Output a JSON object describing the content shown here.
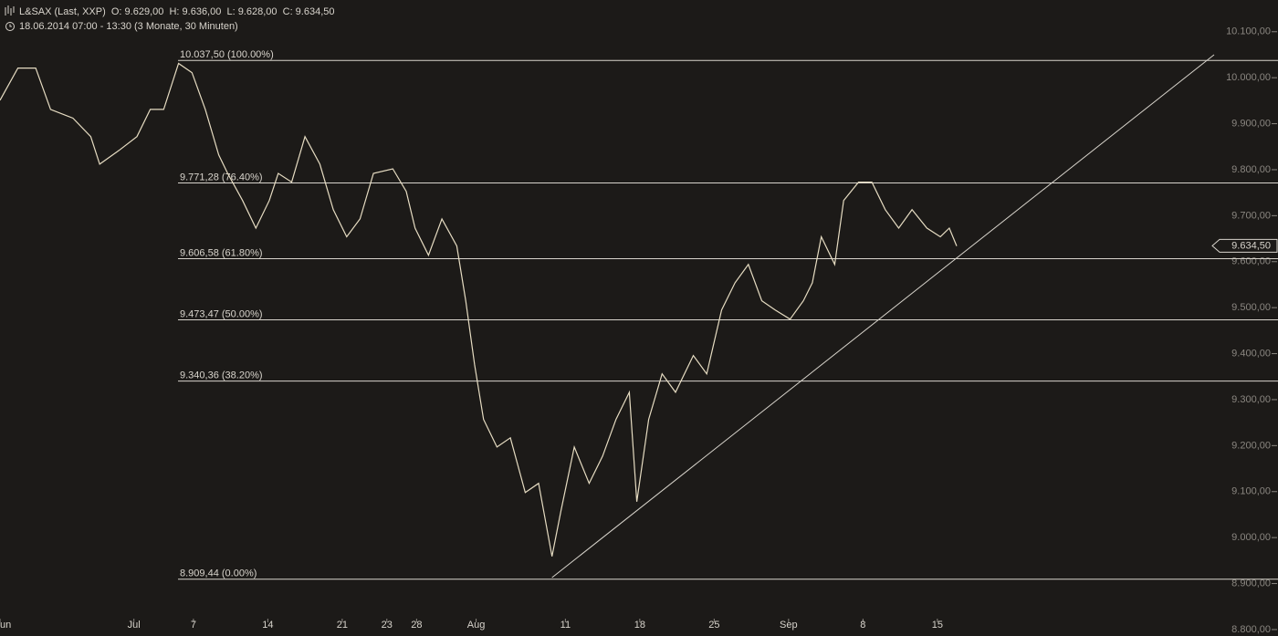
{
  "chart_data": {
    "type": "line",
    "title": "L&SAX (Last, XXP)  O: 9.629,00  H: 9.636,00  L: 9.628,00  C: 9.634,50",
    "subtitle": "18.06.2014 07:00 - 13:30 (3 Monate, 30 Minuten)",
    "x": [
      -3.0,
      -1.8,
      -0.6,
      0.4,
      1.9,
      3.1,
      3.7,
      5.0,
      6.2,
      7.1,
      8.0,
      9.0,
      9.9,
      10.8,
      11.7,
      12.3,
      13.3,
      14.2,
      15.1,
      15.7,
      16.6,
      17.5,
      18.5,
      19.4,
      20.3,
      21.2,
      22.1,
      23.4,
      24.3,
      24.9,
      25.8,
      26.7,
      27.7,
      28.3,
      28.9,
      29.5,
      30.4,
      31.3,
      32.3,
      33.2,
      34.1,
      34.7,
      35.6,
      36.6,
      37.5,
      38.4,
      39.3,
      39.8,
      40.6,
      41.5,
      42.4,
      43.6,
      44.5,
      45.5,
      46.4,
      47.3,
      48.2,
      49.1,
      50.1,
      51.0,
      51.6,
      52.2,
      53.1,
      53.7,
      54.7,
      55.6,
      56.5,
      57.4,
      58.3,
      59.3,
      60.2,
      60.8,
      61.3
    ],
    "series": [
      {
        "name": "L&SAX",
        "color": "#e6dcc2",
        "values": [
          9951,
          10021,
          10021,
          9931,
          9912,
          9872,
          9812,
          9842,
          9872,
          9931,
          9931,
          10031,
          10011,
          9931,
          9832,
          9792,
          9733,
          9673,
          9733,
          9792,
          9773,
          9872,
          9812,
          9713,
          9654,
          9693,
          9792,
          9802,
          9753,
          9673,
          9614,
          9693,
          9634,
          9515,
          9376,
          9257,
          9197,
          9217,
          9098,
          9118,
          8959,
          9058,
          9197,
          9118,
          9177,
          9257,
          9316,
          9078,
          9257,
          9356,
          9316,
          9396,
          9356,
          9495,
          9554,
          9594,
          9515,
          9495,
          9475,
          9515,
          9554,
          9654,
          9594,
          9733,
          9773,
          9773,
          9713,
          9673,
          9713,
          9673,
          9654,
          9673,
          9634
        ]
      }
    ],
    "xlim": [
      -3,
      78.6
    ],
    "xticks": [
      {
        "value": -3,
        "label": "un"
      },
      23,
      {
        "value": 6,
        "label": "Jul"
      },
      {
        "value": 10,
        "label": "7"
      },
      {
        "value": 15,
        "label": "14"
      },
      {
        "value": 20,
        "label": "21"
      },
      {
        "value": 25,
        "label": "28"
      },
      {
        "value": 29,
        "label": "Aug"
      },
      {
        "value": 35,
        "label": "11"
      },
      {
        "value": 40,
        "label": "18"
      },
      {
        "value": 45,
        "label": "25"
      },
      {
        "value": 50,
        "label": "Sep"
      },
      {
        "value": 55,
        "label": "8"
      },
      {
        "value": 60,
        "label": "15"
      }
    ],
    "ylim": [
      8786,
      10169
    ],
    "yticks": [
      {
        "value": 10100,
        "label": "10.100,00"
      },
      {
        "value": 10000,
        "label": "10.000,00"
      },
      {
        "value": 9900,
        "label": "9.900,00"
      },
      {
        "value": 9800,
        "label": "9.800,00"
      },
      {
        "value": 9700,
        "label": "9.700,00"
      },
      {
        "value": 9600,
        "label": "9.600,00"
      },
      {
        "value": 9500,
        "label": "9.500,00"
      },
      {
        "value": 9400,
        "label": "9.400,00"
      },
      {
        "value": 9300,
        "label": "9.300,00"
      },
      {
        "value": 9200,
        "label": "9.200,00"
      },
      {
        "value": 9100,
        "label": "9.100,00"
      },
      {
        "value": 9000,
        "label": "9.000,00"
      },
      {
        "value": 8900,
        "label": "8.900,00"
      },
      {
        "value": 8800,
        "label": "8.800,00"
      }
    ],
    "levels": [
      {
        "value": 10037.5,
        "label": "10.037,50 (100.00%)"
      },
      {
        "value": 9771.28,
        "label": "9.771,28 (76.40%)"
      },
      {
        "value": 9606.58,
        "label": "9.606,58 (61.80%)"
      },
      {
        "value": 9473.47,
        "label": "9.473,47 (50.00%)"
      },
      {
        "value": 9340.36,
        "label": "9.340,36 (38.20%)"
      },
      {
        "value": 8909.44,
        "label": "8.909,44 (0.00%)"
      }
    ],
    "trendline": {
      "x": [
        34.1,
        78.6
      ],
      "values": [
        8913,
        10050
      ]
    },
    "last": {
      "value": 9634.5,
      "label": "9.634,50"
    }
  }
}
